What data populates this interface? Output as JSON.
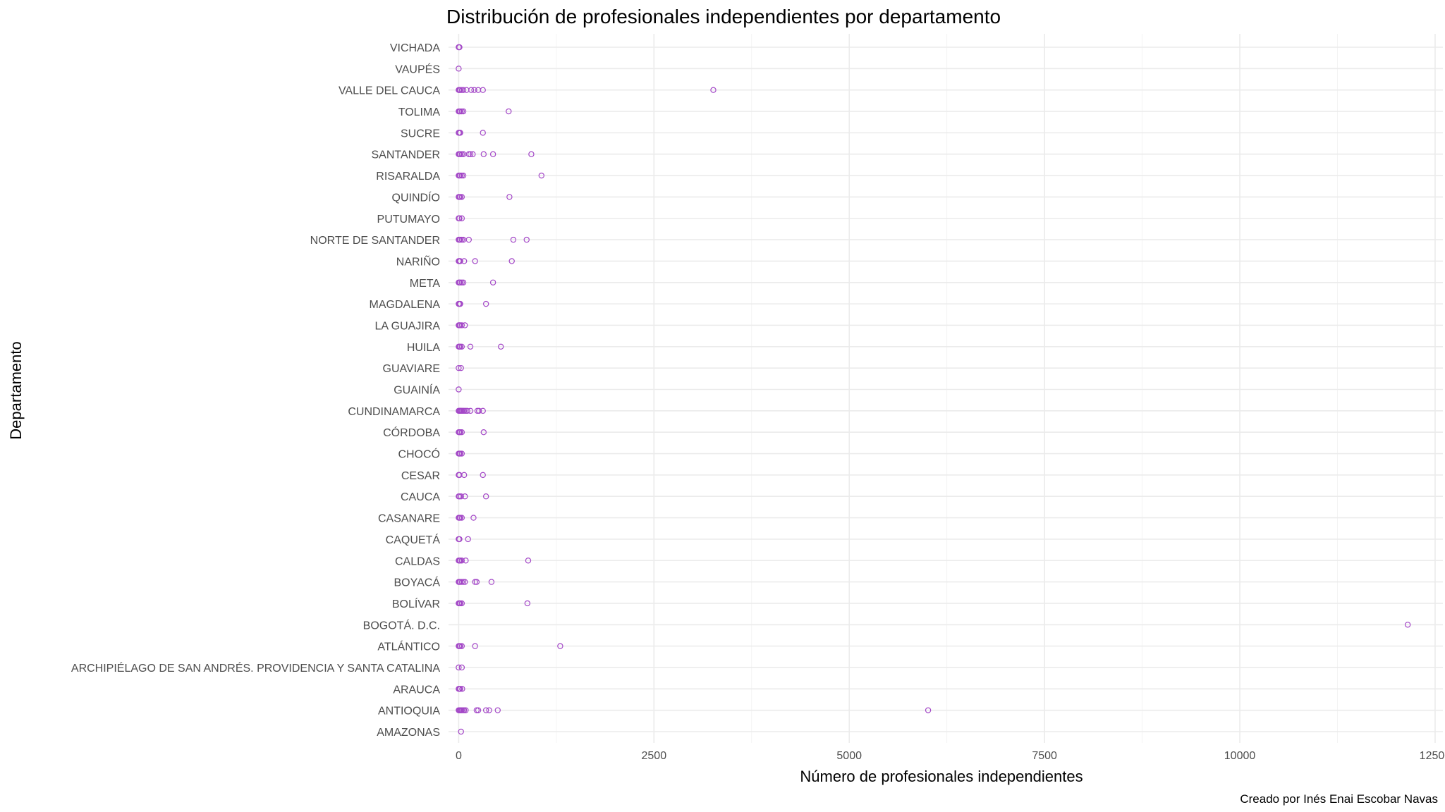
{
  "chart_data": {
    "type": "scatter",
    "title": "Distribución de profesionales independientes por departamento",
    "xlabel": "Número de profesionales independientes",
    "ylabel": "Departamento",
    "caption": "Creado por Inés Enai Escobar Navas",
    "xlim": [
      -130,
      12600
    ],
    "x_ticks": [
      0,
      2500,
      5000,
      7500,
      10000,
      12500
    ],
    "x_tick_labels": [
      "0",
      "2500",
      "5000",
      "7500",
      "10000",
      "12500"
    ],
    "grid": true,
    "point_color": "#A347C7",
    "categories": [
      "AMAZONAS",
      "ANTIOQUIA",
      "ARAUCA",
      "ARCHIPIÉLAGO DE SAN ANDRÉS. PROVIDENCIA Y SANTA CATALINA",
      "ATLÁNTICO",
      "BOGOTÁ. D.C.",
      "BOLÍVAR",
      "BOYACÁ",
      "CALDAS",
      "CAQUETÁ",
      "CASANARE",
      "CAUCA",
      "CESAR",
      "CHOCÓ",
      "CÓRDOBA",
      "CUNDINAMARCA",
      "GUAINÍA",
      "GUAVIARE",
      "HUILA",
      "LA GUAJIRA",
      "MAGDALENA",
      "META",
      "NARIÑO",
      "NORTE DE SANTANDER",
      "PUTUMAYO",
      "QUINDÍO",
      "RISARALDA",
      "SANTANDER",
      "SUCRE",
      "TOLIMA",
      "VALLE DEL CAUCA",
      "VAUPÉS",
      "VICHADA"
    ],
    "series": [
      {
        "values": [
          [
            30
          ],
          [
            0,
            10,
            20,
            30,
            40,
            55,
            70,
            90,
            230,
            250,
            350,
            390,
            500,
            6010
          ],
          [
            0,
            10,
            20,
            45
          ],
          [
            0,
            40
          ],
          [
            0,
            10,
            20,
            40,
            210,
            1300
          ],
          [
            12150
          ],
          [
            0,
            10,
            20,
            40,
            880
          ],
          [
            0,
            10,
            20,
            40,
            60,
            80,
            210,
            230,
            420
          ],
          [
            0,
            10,
            20,
            40,
            90,
            890
          ],
          [
            0,
            10,
            120
          ],
          [
            0,
            10,
            20,
            40,
            190
          ],
          [
            0,
            10,
            30,
            80,
            350
          ],
          [
            0,
            10,
            70,
            310
          ],
          [
            0,
            10,
            20,
            40
          ],
          [
            0,
            10,
            20,
            40,
            320
          ],
          [
            0,
            10,
            20,
            30,
            40,
            55,
            70,
            90,
            110,
            150,
            240,
            260,
            310
          ],
          [
            0
          ],
          [
            0,
            30
          ],
          [
            0,
            10,
            20,
            40,
            150,
            540
          ],
          [
            0,
            10,
            20,
            40,
            80
          ],
          [
            0,
            10,
            20,
            350
          ],
          [
            0,
            10,
            20,
            40,
            60,
            440
          ],
          [
            0,
            10,
            20,
            70,
            210,
            680
          ],
          [
            0,
            10,
            20,
            40,
            60,
            130,
            700,
            870
          ],
          [
            0,
            10,
            40
          ],
          [
            0,
            10,
            20,
            40,
            650
          ],
          [
            0,
            10,
            20,
            40,
            60,
            1060
          ],
          [
            0,
            10,
            20,
            40,
            60,
            130,
            150,
            180,
            320,
            440,
            930
          ],
          [
            0,
            10,
            20,
            310
          ],
          [
            0,
            10,
            20,
            40,
            60,
            640
          ],
          [
            0,
            10,
            20,
            40,
            60,
            100,
            160,
            200,
            250,
            310,
            3260
          ],
          [
            0
          ],
          [
            0,
            10
          ]
        ]
      }
    ]
  }
}
